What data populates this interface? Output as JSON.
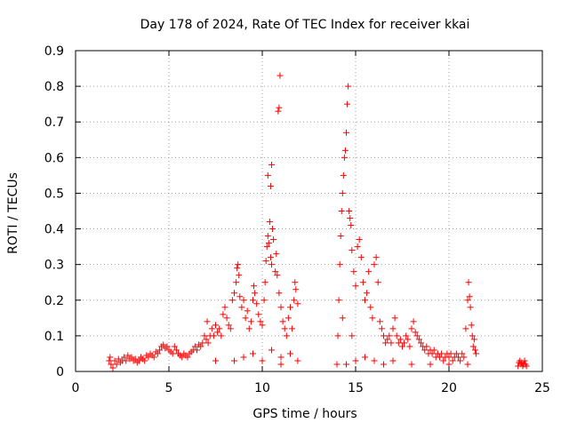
{
  "chart_data": {
    "type": "scatter",
    "title": "Day 178 of 2024, Rate Of TEC Index for receiver kkai",
    "xlabel": "GPS time / hours",
    "ylabel": "ROTI / TECUs",
    "xlim": [
      0,
      25
    ],
    "ylim": [
      0,
      0.9
    ],
    "xticks": [
      0,
      5,
      10,
      15,
      20,
      25
    ],
    "xtick_labels": [
      "0",
      "5",
      "10",
      "15",
      "20",
      "25"
    ],
    "yticks": [
      0,
      0.1,
      0.2,
      0.3,
      0.4,
      0.5,
      0.6,
      0.7,
      0.8,
      0.9
    ],
    "ytick_labels": [
      "0",
      "0.1",
      "0.2",
      "0.3",
      "0.4",
      "0.5",
      "0.6",
      "0.7",
      "0.8",
      "0.9"
    ],
    "grid": true,
    "marker": "+",
    "color": "#ff0000",
    "series": [
      {
        "name": "ROTI",
        "points": [
          [
            1.8,
            0.03
          ],
          [
            1.85,
            0.04
          ],
          [
            1.9,
            0.02
          ],
          [
            2.0,
            0.01
          ],
          [
            2.1,
            0.03
          ],
          [
            2.2,
            0.02
          ],
          [
            2.3,
            0.035
          ],
          [
            2.4,
            0.025
          ],
          [
            2.5,
            0.03
          ],
          [
            2.6,
            0.04
          ],
          [
            2.7,
            0.03
          ],
          [
            2.8,
            0.045
          ],
          [
            2.9,
            0.035
          ],
          [
            3.0,
            0.04
          ],
          [
            3.1,
            0.03
          ],
          [
            3.2,
            0.035
          ],
          [
            3.3,
            0.025
          ],
          [
            3.4,
            0.03
          ],
          [
            3.5,
            0.04
          ],
          [
            3.6,
            0.035
          ],
          [
            3.7,
            0.03
          ],
          [
            3.8,
            0.045
          ],
          [
            3.9,
            0.04
          ],
          [
            4.0,
            0.05
          ],
          [
            4.1,
            0.045
          ],
          [
            4.2,
            0.04
          ],
          [
            4.3,
            0.055
          ],
          [
            4.4,
            0.05
          ],
          [
            4.5,
            0.06
          ],
          [
            4.6,
            0.07
          ],
          [
            4.7,
            0.075
          ],
          [
            4.8,
            0.065
          ],
          [
            4.9,
            0.07
          ],
          [
            5.0,
            0.06
          ],
          [
            5.1,
            0.055
          ],
          [
            5.2,
            0.05
          ],
          [
            5.3,
            0.07
          ],
          [
            5.4,
            0.06
          ],
          [
            5.5,
            0.05
          ],
          [
            5.6,
            0.045
          ],
          [
            5.7,
            0.04
          ],
          [
            5.8,
            0.05
          ],
          [
            5.9,
            0.045
          ],
          [
            6.0,
            0.04
          ],
          [
            6.1,
            0.05
          ],
          [
            6.2,
            0.055
          ],
          [
            6.3,
            0.06
          ],
          [
            6.4,
            0.07
          ],
          [
            6.5,
            0.06
          ],
          [
            6.6,
            0.075
          ],
          [
            6.7,
            0.07
          ],
          [
            6.8,
            0.08
          ],
          [
            6.9,
            0.1
          ],
          [
            7.0,
            0.09
          ],
          [
            7.05,
            0.14
          ],
          [
            7.1,
            0.08
          ],
          [
            7.2,
            0.1
          ],
          [
            7.3,
            0.12
          ],
          [
            7.4,
            0.1
          ],
          [
            7.5,
            0.13
          ],
          [
            7.6,
            0.11
          ],
          [
            7.7,
            0.12
          ],
          [
            7.8,
            0.1
          ],
          [
            7.9,
            0.16
          ],
          [
            8.0,
            0.18
          ],
          [
            8.1,
            0.15
          ],
          [
            8.2,
            0.13
          ],
          [
            8.3,
            0.12
          ],
          [
            8.4,
            0.2
          ],
          [
            8.5,
            0.22
          ],
          [
            8.6,
            0.25
          ],
          [
            8.65,
            0.29
          ],
          [
            8.7,
            0.3
          ],
          [
            8.75,
            0.27
          ],
          [
            8.8,
            0.21
          ],
          [
            8.9,
            0.18
          ],
          [
            9.0,
            0.2
          ],
          [
            9.1,
            0.15
          ],
          [
            9.2,
            0.17
          ],
          [
            9.3,
            0.12
          ],
          [
            9.4,
            0.14
          ],
          [
            9.5,
            0.2
          ],
          [
            9.55,
            0.24
          ],
          [
            9.6,
            0.22
          ],
          [
            9.7,
            0.19
          ],
          [
            9.8,
            0.16
          ],
          [
            9.9,
            0.14
          ],
          [
            10.0,
            0.13
          ],
          [
            10.1,
            0.2
          ],
          [
            10.15,
            0.25
          ],
          [
            10.2,
            0.31
          ],
          [
            10.25,
            0.35
          ],
          [
            10.3,
            0.38
          ],
          [
            10.35,
            0.36
          ],
          [
            10.4,
            0.42
          ],
          [
            10.45,
            0.32
          ],
          [
            10.5,
            0.3
          ],
          [
            10.55,
            0.4
          ],
          [
            10.6,
            0.37
          ],
          [
            10.7,
            0.28
          ],
          [
            10.75,
            0.33
          ],
          [
            10.8,
            0.27
          ],
          [
            10.9,
            0.22
          ],
          [
            11.0,
            0.18
          ],
          [
            11.1,
            0.14
          ],
          [
            11.2,
            0.12
          ],
          [
            11.3,
            0.1
          ],
          [
            11.4,
            0.15
          ],
          [
            11.5,
            0.18
          ],
          [
            11.6,
            0.12
          ],
          [
            11.7,
            0.2
          ],
          [
            11.75,
            0.25
          ],
          [
            11.8,
            0.23
          ],
          [
            11.9,
            0.19
          ],
          [
            10.3,
            0.55
          ],
          [
            10.45,
            0.52
          ],
          [
            10.5,
            0.58
          ],
          [
            10.85,
            0.73
          ],
          [
            10.9,
            0.74
          ],
          [
            10.95,
            0.83
          ],
          [
            11.0,
            0.02
          ],
          [
            8.5,
            0.03
          ],
          [
            9.0,
            0.04
          ],
          [
            9.5,
            0.05
          ],
          [
            10.0,
            0.03
          ],
          [
            10.5,
            0.06
          ],
          [
            11.0,
            0.04
          ],
          [
            11.5,
            0.05
          ],
          [
            11.9,
            0.03
          ],
          [
            7.5,
            0.03
          ],
          [
            14.0,
            0.02
          ],
          [
            14.05,
            0.1
          ],
          [
            14.1,
            0.2
          ],
          [
            14.15,
            0.3
          ],
          [
            14.2,
            0.38
          ],
          [
            14.25,
            0.45
          ],
          [
            14.3,
            0.5
          ],
          [
            14.35,
            0.55
          ],
          [
            14.4,
            0.6
          ],
          [
            14.45,
            0.62
          ],
          [
            14.5,
            0.67
          ],
          [
            14.55,
            0.75
          ],
          [
            14.6,
            0.8
          ],
          [
            14.65,
            0.45
          ],
          [
            14.7,
            0.43
          ],
          [
            14.75,
            0.41
          ],
          [
            14.8,
            0.34
          ],
          [
            14.9,
            0.28
          ],
          [
            15.0,
            0.24
          ],
          [
            15.1,
            0.35
          ],
          [
            15.2,
            0.37
          ],
          [
            15.3,
            0.32
          ],
          [
            15.4,
            0.25
          ],
          [
            15.5,
            0.2
          ],
          [
            15.6,
            0.22
          ],
          [
            15.7,
            0.28
          ],
          [
            15.8,
            0.18
          ],
          [
            15.9,
            0.15
          ],
          [
            16.0,
            0.3
          ],
          [
            16.1,
            0.32
          ],
          [
            16.2,
            0.25
          ],
          [
            16.3,
            0.14
          ],
          [
            16.4,
            0.12
          ],
          [
            16.5,
            0.1
          ],
          [
            16.6,
            0.08
          ],
          [
            16.7,
            0.09
          ],
          [
            16.8,
            0.1
          ],
          [
            16.9,
            0.08
          ],
          [
            17.0,
            0.12
          ],
          [
            17.1,
            0.15
          ],
          [
            17.2,
            0.1
          ],
          [
            17.3,
            0.08
          ],
          [
            17.4,
            0.09
          ],
          [
            17.5,
            0.07
          ],
          [
            17.6,
            0.08
          ],
          [
            17.7,
            0.1
          ],
          [
            17.8,
            0.09
          ],
          [
            17.9,
            0.07
          ],
          [
            18.0,
            0.12
          ],
          [
            18.1,
            0.14
          ],
          [
            18.2,
            0.11
          ],
          [
            18.3,
            0.1
          ],
          [
            18.4,
            0.09
          ],
          [
            18.5,
            0.08
          ],
          [
            18.6,
            0.07
          ],
          [
            18.7,
            0.06
          ],
          [
            18.8,
            0.07
          ],
          [
            18.9,
            0.05
          ],
          [
            19.0,
            0.06
          ],
          [
            19.1,
            0.05
          ],
          [
            19.2,
            0.06
          ],
          [
            19.3,
            0.04
          ],
          [
            19.4,
            0.05
          ],
          [
            19.5,
            0.04
          ],
          [
            19.6,
            0.05
          ],
          [
            19.7,
            0.03
          ],
          [
            19.8,
            0.04
          ],
          [
            19.9,
            0.05
          ],
          [
            20.0,
            0.04
          ],
          [
            20.1,
            0.05
          ],
          [
            20.2,
            0.03
          ],
          [
            20.3,
            0.04
          ],
          [
            20.4,
            0.05
          ],
          [
            20.5,
            0.04
          ],
          [
            20.6,
            0.03
          ],
          [
            20.7,
            0.05
          ],
          [
            20.8,
            0.04
          ],
          [
            20.9,
            0.12
          ],
          [
            21.0,
            0.2
          ],
          [
            21.05,
            0.25
          ],
          [
            21.1,
            0.21
          ],
          [
            21.15,
            0.18
          ],
          [
            21.2,
            0.13
          ],
          [
            21.25,
            0.1
          ],
          [
            21.3,
            0.07
          ],
          [
            21.35,
            0.09
          ],
          [
            21.4,
            0.06
          ],
          [
            21.45,
            0.05
          ],
          [
            14.5,
            0.02
          ],
          [
            15.0,
            0.03
          ],
          [
            15.5,
            0.04
          ],
          [
            16.0,
            0.03
          ],
          [
            16.5,
            0.02
          ],
          [
            17.0,
            0.03
          ],
          [
            18.0,
            0.02
          ],
          [
            19.0,
            0.02
          ],
          [
            20.0,
            0.02
          ],
          [
            21.0,
            0.02
          ],
          [
            14.3,
            0.15
          ],
          [
            14.8,
            0.1
          ],
          [
            23.7,
            0.015
          ],
          [
            23.75,
            0.025
          ],
          [
            23.8,
            0.03
          ],
          [
            23.85,
            0.02
          ],
          [
            23.9,
            0.025
          ],
          [
            23.95,
            0.015
          ],
          [
            24.0,
            0.02
          ],
          [
            24.05,
            0.03
          ],
          [
            24.1,
            0.02
          ],
          [
            24.15,
            0.015
          ]
        ]
      }
    ]
  }
}
